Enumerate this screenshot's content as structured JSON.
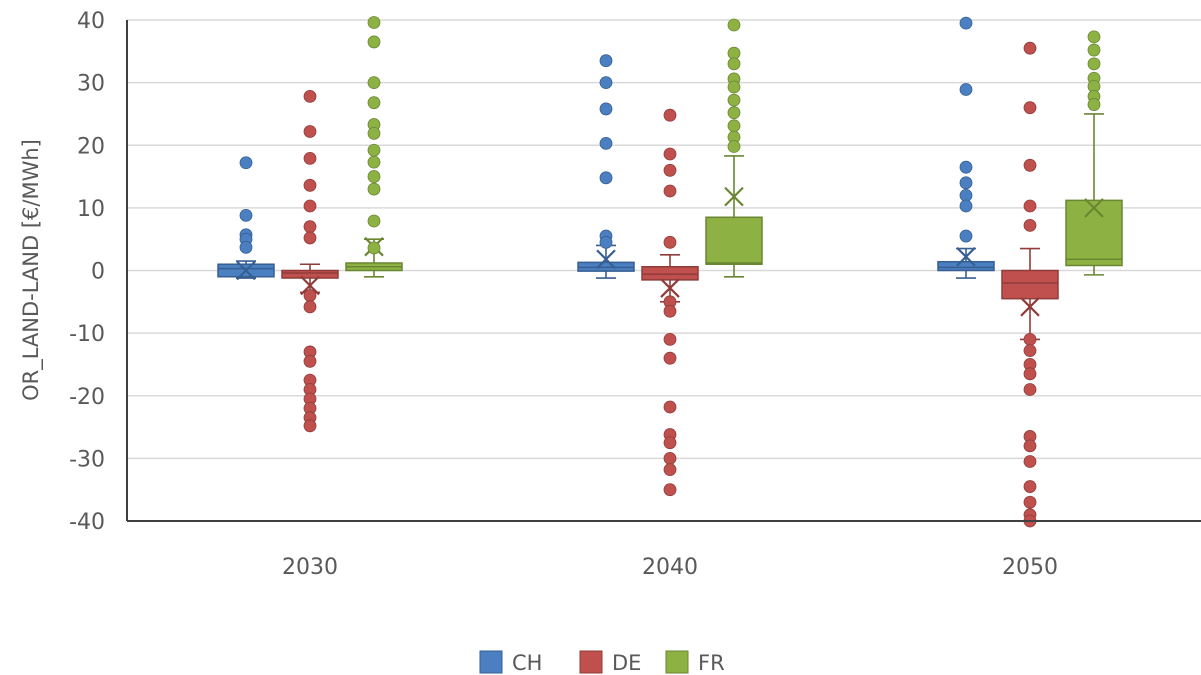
{
  "chart_data": {
    "type": "boxplot",
    "ylabel": "OR_LAND-LAND [€/MWh]",
    "ylim": [
      -40,
      40
    ],
    "yticks": [
      "40",
      "30",
      "20",
      "10",
      "0",
      "-10",
      "-20",
      "-30",
      "-40"
    ],
    "categories": [
      "2030",
      "2040",
      "2050"
    ],
    "grid": "horizontal",
    "legend_position": "bottom",
    "series": [
      {
        "name": "CH",
        "color": "#4a7fc1",
        "boxes": [
          {
            "whisker_low": -1.2,
            "q1": -1.0,
            "median": 0.3,
            "q3": 1.0,
            "whisker_high": 1.5,
            "mean": 0.0,
            "outliers": [
              17.2,
              8.8,
              5.7,
              5.0,
              3.7
            ]
          },
          {
            "whisker_low": -1.2,
            "q1": -0.1,
            "median": 0.5,
            "q3": 1.3,
            "whisker_high": 4.0,
            "mean": 1.8,
            "outliers": [
              33.5,
              30.0,
              25.8,
              20.3,
              14.8,
              5.5,
              4.5
            ]
          },
          {
            "whisker_low": -1.2,
            "q1": 0.0,
            "median": 0.5,
            "q3": 1.4,
            "whisker_high": 3.5,
            "mean": 2.2,
            "outliers": [
              39.5,
              28.9,
              16.5,
              14.0,
              12.0,
              10.3,
              5.5
            ]
          }
        ]
      },
      {
        "name": "DE",
        "color": "#c0504d",
        "boxes": [
          {
            "whisker_low": -3.5,
            "q1": -1.2,
            "median": -0.4,
            "q3": 0.0,
            "whisker_high": 1.0,
            "mean": -2.4,
            "outliers": [
              27.8,
              22.2,
              17.9,
              13.6,
              10.3,
              7.0,
              5.2,
              -4.0,
              -5.8,
              -13.0,
              -14.5,
              -17.5,
              -19.0,
              -20.5,
              -22.0,
              -23.5,
              -24.8
            ]
          },
          {
            "whisker_low": -5.0,
            "q1": -1.5,
            "median": -0.6,
            "q3": 0.6,
            "whisker_high": 2.5,
            "mean": -2.8,
            "outliers": [
              24.8,
              18.6,
              16.0,
              12.7,
              4.5,
              -5.0,
              -6.5,
              -11.0,
              -14.0,
              -21.8,
              -26.2,
              -27.5,
              -30.0,
              -31.8,
              -35.0
            ]
          },
          {
            "whisker_low": -11.0,
            "q1": -4.5,
            "median": -2.0,
            "q3": 0.0,
            "whisker_high": 3.5,
            "mean": -5.8,
            "outliers": [
              35.5,
              26.0,
              16.8,
              10.3,
              7.2,
              -11.0,
              -12.8,
              -15.0,
              -16.5,
              -19.0,
              -26.5,
              -28.0,
              -30.5,
              -34.5,
              -37.0,
              -39.0,
              -40.0
            ]
          }
        ]
      },
      {
        "name": "FR",
        "color": "#8db243",
        "boxes": [
          {
            "whisker_low": -1.0,
            "q1": 0.0,
            "median": 0.6,
            "q3": 1.2,
            "whisker_high": 5.0,
            "mean": 3.8,
            "outliers": [
              39.6,
              36.5,
              30.0,
              26.8,
              23.3,
              21.9,
              19.2,
              17.3,
              15.0,
              13.0,
              7.9,
              3.6
            ]
          },
          {
            "whisker_low": -1.0,
            "q1": 1.0,
            "median": 1.2,
            "q3": 8.5,
            "whisker_high": 18.3,
            "mean": 11.8,
            "outliers": [
              39.2,
              34.7,
              33.0,
              30.6,
              29.3,
              27.2,
              25.2,
              23.1,
              21.3,
              19.8
            ]
          },
          {
            "whisker_low": -0.7,
            "q1": 0.8,
            "median": 1.8,
            "q3": 11.2,
            "whisker_high": 25.0,
            "mean": 10.0,
            "outliers": [
              37.3,
              35.2,
              33.0,
              30.7,
              29.4,
              27.8,
              26.5
            ]
          }
        ]
      }
    ]
  }
}
